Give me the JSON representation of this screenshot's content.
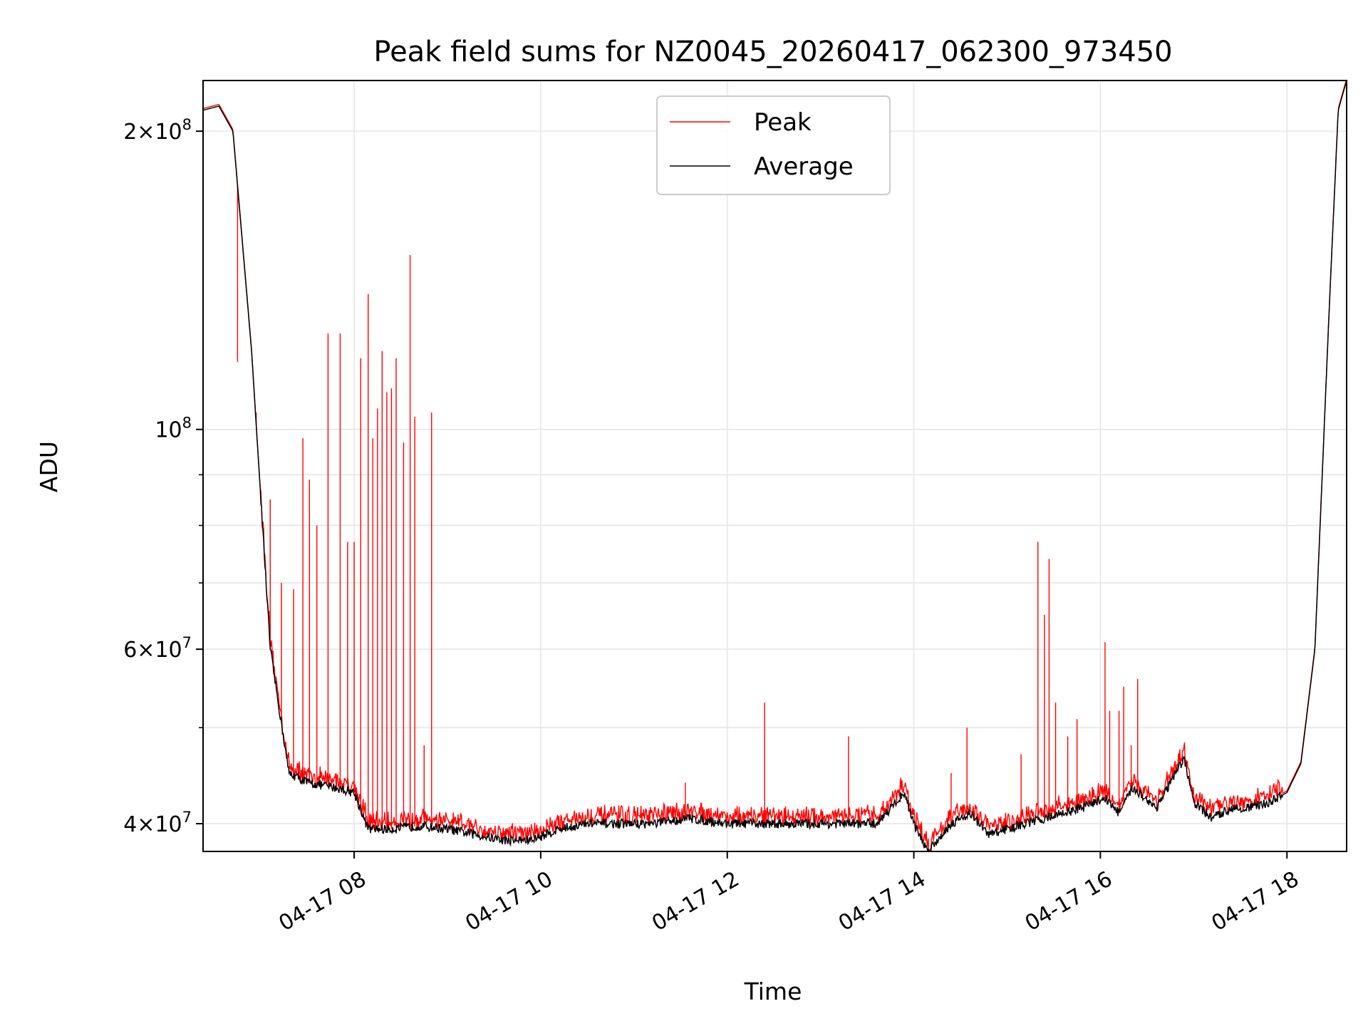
{
  "chart_data": {
    "type": "line",
    "title": "Peak field sums for NZ0045_20260417_062300_973450",
    "xlabel": "Time",
    "ylabel": "ADU",
    "yscale": "log",
    "ylim": [
      37500000,
      225000000
    ],
    "xlim_hours": [
      6.38,
      18.64
    ],
    "grid": true,
    "legend_position": "upper center",
    "x_ticks": [
      {
        "hour": 8,
        "label": "04-17 08"
      },
      {
        "hour": 10,
        "label": "04-17 10"
      },
      {
        "hour": 12,
        "label": "04-17 12"
      },
      {
        "hour": 14,
        "label": "04-17 14"
      },
      {
        "hour": 16,
        "label": "04-17 16"
      },
      {
        "hour": 18,
        "label": "04-17 18"
      }
    ],
    "y_ticks": [
      {
        "value": 40000000,
        "mant": "4",
        "exp": "7",
        "kind": "mant"
      },
      {
        "value": 60000000,
        "mant": "6",
        "exp": "7",
        "kind": "mant"
      },
      {
        "value": 100000000,
        "mant": "",
        "exp": "8",
        "kind": "pow"
      },
      {
        "value": 200000000,
        "mant": "2",
        "exp": "8",
        "kind": "mant"
      }
    ],
    "y_minor_ticks": [
      50000000,
      70000000,
      80000000,
      90000000
    ],
    "series": [
      {
        "name": "Average",
        "color": "#000000",
        "x": [
          6.38,
          6.55,
          6.7,
          6.9,
          7.1,
          7.3,
          7.5,
          7.8,
          8.0,
          8.15,
          8.4,
          8.7,
          9.0,
          9.3,
          9.6,
          9.9,
          10.2,
          10.5,
          10.8,
          11.2,
          11.6,
          12.0,
          12.5,
          13.0,
          13.6,
          13.9,
          14.0,
          14.15,
          14.4,
          14.6,
          14.8,
          15.0,
          15.4,
          15.8,
          16.05,
          16.2,
          16.35,
          16.6,
          16.9,
          17.0,
          17.2,
          17.4,
          17.6,
          17.8,
          18.0,
          18.15,
          18.3,
          18.45,
          18.55,
          18.64
        ],
        "y": [
          210000000,
          212000000,
          200000000,
          120000000,
          60000000,
          45000000,
          44000000,
          43500000,
          43000000,
          39500000,
          39500000,
          39800000,
          39500000,
          39000000,
          38500000,
          38500000,
          39500000,
          40000000,
          40000000,
          40000000,
          40500000,
          40000000,
          40000000,
          40000000,
          40000000,
          43000000,
          40000000,
          37500000,
          40000000,
          41000000,
          39000000,
          39500000,
          40500000,
          41500000,
          42500000,
          41000000,
          43500000,
          41500000,
          46500000,
          42000000,
          40500000,
          41500000,
          41500000,
          42000000,
          43000000,
          46000000,
          60000000,
          130000000,
          210000000,
          225000000
        ]
      },
      {
        "name": "Peak",
        "color": "#ff0000",
        "spikes": [
          [
            6.75,
            117000000
          ],
          [
            6.95,
            104000000
          ],
          [
            7.1,
            85000000
          ],
          [
            7.22,
            70000000
          ],
          [
            7.35,
            69000000
          ],
          [
            7.45,
            98000000
          ],
          [
            7.52,
            89000000
          ],
          [
            7.6,
            80000000
          ],
          [
            7.72,
            125000000
          ],
          [
            7.85,
            125000000
          ],
          [
            7.93,
            77000000
          ],
          [
            8.0,
            77000000
          ],
          [
            8.07,
            118000000
          ],
          [
            8.15,
            137000000
          ],
          [
            8.2,
            98000000
          ],
          [
            8.25,
            105000000
          ],
          [
            8.3,
            120000000
          ],
          [
            8.35,
            109000000
          ],
          [
            8.4,
            110000000
          ],
          [
            8.45,
            118000000
          ],
          [
            8.53,
            97000000
          ],
          [
            8.6,
            150000000
          ],
          [
            8.65,
            103000000
          ],
          [
            8.75,
            48000000
          ],
          [
            8.83,
            104000000
          ],
          [
            11.55,
            44000000
          ],
          [
            12.4,
            53000000
          ],
          [
            13.3,
            49000000
          ],
          [
            14.4,
            45000000
          ],
          [
            14.57,
            50000000
          ],
          [
            15.15,
            47000000
          ],
          [
            15.33,
            77000000
          ],
          [
            15.4,
            65000000
          ],
          [
            15.45,
            74000000
          ],
          [
            15.52,
            53000000
          ],
          [
            15.65,
            49000000
          ],
          [
            15.75,
            51000000
          ],
          [
            16.05,
            61000000
          ],
          [
            16.1,
            52000000
          ],
          [
            16.2,
            52000000
          ],
          [
            16.25,
            55000000
          ],
          [
            16.33,
            48000000
          ],
          [
            16.4,
            56000000
          ]
        ]
      }
    ]
  }
}
